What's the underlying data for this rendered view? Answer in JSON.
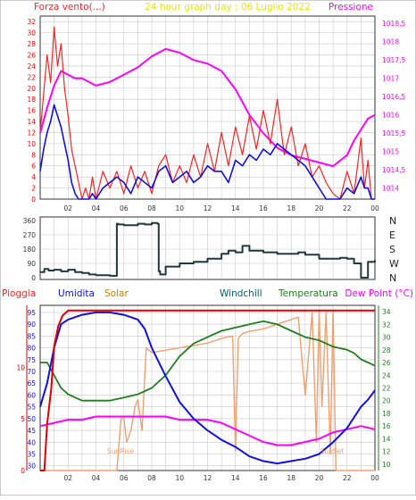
{
  "header": {
    "top_left": "Forza vento",
    "top_left_unit": "(...)",
    "top_center": "24 hour graph day : 06 Luglio 2022",
    "top_right": "Pressione"
  },
  "bottom_labels": {
    "pioggia": "Pioggia",
    "umidita": "Umidita",
    "solar": "Solar",
    "windchill": "Windchill",
    "temperatura": "Temperatura",
    "dewpoint": "Dew Point (°C)",
    "sunrise": "SunRise",
    "sunset": "SunSet"
  },
  "colors": {
    "wind_gust": "#ff2020",
    "wind_avg": "#1010e0",
    "pressure": "#ff00ff",
    "direction": "#203838",
    "rain": "#e00000",
    "humidity": "#1010e0",
    "solar": "#f0a070",
    "temperature": "#208020",
    "dewpoint": "#ff00ff",
    "axis_left_top": "#ff0000",
    "axis_right_top": "#ff00ff",
    "axis_right_bottom": "#208020",
    "title": "#e8e800",
    "windchill_label": "#006060"
  },
  "chart_data": [
    {
      "type": "line",
      "title": "24 hour graph day : 06 Luglio 2022",
      "x_ticks": [
        "02",
        "04",
        "06",
        "08",
        "10",
        "12",
        "14",
        "16",
        "18",
        "20",
        "22",
        "00"
      ],
      "x_range_hours": [
        0,
        24
      ],
      "ylabel_left": "Forza vento(...)",
      "ylim_left": [
        0,
        33
      ],
      "yticks_left": [
        "0",
        "2",
        "4",
        "6",
        "8",
        "10",
        "12",
        "14",
        "16",
        "18",
        "20",
        "22",
        "24",
        "26",
        "28",
        "30",
        "32"
      ],
      "ylabel_right": "Pressione",
      "ylim_right": [
        1013.7,
        1018.7
      ],
      "yticks_right": [
        "1014",
        "1014,5",
        "1015",
        "1015,5",
        "1016",
        "1016,5",
        "1017",
        "1017,5",
        "1018",
        "1018,5"
      ],
      "series": [
        {
          "name": "Forza vento",
          "axis": "left",
          "x": [
            0,
            0.25,
            0.5,
            0.75,
            1,
            1.25,
            1.5,
            1.75,
            2,
            2.25,
            2.5,
            2.75,
            3,
            3.25,
            3.5,
            3.75,
            4,
            4.5,
            5,
            5.5,
            6,
            6.5,
            7,
            7.5,
            8,
            8.5,
            9,
            9.5,
            10,
            10.5,
            11,
            11.5,
            12,
            12.5,
            13,
            13.5,
            14,
            14.5,
            15,
            15.5,
            16,
            16.5,
            17,
            17.5,
            18,
            18.5,
            19,
            19.5,
            20,
            20.5,
            21,
            21.5,
            22,
            22.5,
            23,
            23.25,
            23.5,
            23.75,
            24
          ],
          "values": [
            12,
            19,
            26,
            21,
            31,
            24,
            28,
            20,
            15,
            9,
            6,
            3,
            0,
            2,
            0,
            4,
            0,
            5,
            2,
            5,
            1,
            6,
            2,
            5,
            1,
            6,
            8,
            3,
            6,
            3,
            8,
            4,
            10,
            5,
            12,
            6,
            13,
            8,
            15,
            9,
            16,
            10,
            18,
            8,
            13,
            6,
            10,
            4,
            6,
            3,
            1,
            0,
            5,
            1,
            11,
            2,
            7,
            0,
            0
          ]
        },
        {
          "name": "Vento medio",
          "axis": "left",
          "x": [
            0,
            0.25,
            0.5,
            0.75,
            1,
            1.25,
            1.5,
            1.75,
            2,
            2.25,
            2.5,
            2.75,
            3,
            3.25,
            3.5,
            3.75,
            4,
            4.5,
            5,
            5.5,
            6,
            6.5,
            7,
            7.5,
            8,
            8.5,
            9,
            9.5,
            10,
            10.5,
            11,
            11.5,
            12,
            12.5,
            13,
            13.5,
            14,
            14.5,
            15,
            15.5,
            16,
            16.5,
            17,
            17.5,
            18,
            18.5,
            19,
            19.5,
            20,
            20.5,
            21,
            21.5,
            22,
            22.5,
            23,
            23.25,
            23.5,
            23.75,
            24
          ],
          "values": [
            5,
            9,
            12,
            14,
            17,
            15,
            13,
            10,
            7,
            3,
            1,
            0,
            0,
            0,
            0,
            1,
            0,
            2,
            3,
            4,
            3,
            1,
            4,
            3,
            2,
            5,
            6,
            3,
            4,
            5,
            3,
            4,
            6,
            5,
            5,
            3,
            7,
            6,
            8,
            7,
            9,
            8,
            10,
            9,
            8,
            7,
            6,
            4,
            2,
            0,
            0,
            0,
            2,
            1,
            4,
            2,
            2,
            0,
            0
          ]
        },
        {
          "name": "Pressione",
          "axis": "right",
          "x": [
            0,
            0.5,
            1,
            1.5,
            2,
            2.5,
            3,
            3.5,
            4,
            5,
            6,
            7,
            8,
            9,
            10,
            11,
            12,
            13,
            14,
            15,
            16,
            17,
            18,
            19,
            20,
            21,
            22,
            22.5,
            23,
            23.5,
            24
          ],
          "values": [
            1015.5,
            1016.2,
            1016.8,
            1017.2,
            1017.1,
            1017.0,
            1017.0,
            1016.9,
            1016.8,
            1016.9,
            1017.1,
            1017.3,
            1017.6,
            1017.8,
            1017.7,
            1017.5,
            1017.4,
            1017.2,
            1016.7,
            1016.0,
            1015.5,
            1015.1,
            1014.9,
            1014.8,
            1014.7,
            1014.6,
            1014.9,
            1015.3,
            1015.6,
            1015.9,
            1016.0
          ]
        }
      ]
    },
    {
      "type": "line",
      "title": "",
      "x_range_hours": [
        0,
        24
      ],
      "ylim": [
        0,
        360
      ],
      "yticks_left": [
        "0",
        "90",
        "180",
        "270",
        "360"
      ],
      "yticks_right": [
        "N",
        "W",
        "S",
        "E",
        "N"
      ],
      "series": [
        {
          "name": "Direzione vento",
          "x": [
            0,
            0.3,
            0.6,
            1,
            1.5,
            2,
            2.5,
            3,
            3.5,
            4,
            4.5,
            5,
            5.4,
            5.5,
            5.6,
            6,
            7,
            7.5,
            8,
            8.4,
            8.5,
            8.6,
            9,
            10,
            11,
            12,
            13,
            13.5,
            14,
            14.5,
            15,
            16,
            17,
            18,
            18.5,
            19,
            20,
            21,
            21.5,
            22,
            22.5,
            23,
            23.25,
            23.5,
            24
          ],
          "values": [
            35,
            55,
            45,
            50,
            40,
            50,
            35,
            30,
            20,
            15,
            15,
            12,
            12,
            340,
            335,
            330,
            340,
            335,
            345,
            340,
            40,
            20,
            70,
            90,
            100,
            120,
            150,
            170,
            160,
            200,
            170,
            160,
            150,
            150,
            160,
            145,
            120,
            120,
            125,
            120,
            90,
            0,
            0,
            100,
            110
          ]
        }
      ]
    },
    {
      "type": "line",
      "title": "",
      "x_range_hours": [
        0,
        24
      ],
      "ylim_left_humidity": [
        28,
        98
      ],
      "yticks_left_humidity": [
        "30",
        "35",
        "40",
        "45",
        "50",
        "55",
        "60",
        "65",
        "70",
        "75",
        "80",
        "85",
        "90",
        "95"
      ],
      "yticks_left_rain": [
        "0",
        "5",
        "10"
      ],
      "ylim_right": [
        9,
        35
      ],
      "yticks_right": [
        "10",
        "12",
        "14",
        "16",
        "18",
        "20",
        "22",
        "24",
        "26",
        "28",
        "30",
        "32",
        "34"
      ],
      "annotations": [
        "SunRise",
        "SunSet"
      ],
      "series": [
        {
          "name": "Pioggia",
          "axis": "rain",
          "x": [
            0,
            0.3,
            0.5,
            0.8,
            1.0,
            1.3,
            1.6,
            2.0,
            3,
            24
          ],
          "values": [
            0,
            0,
            4.5,
            8,
            12,
            14,
            15,
            15.5,
            15.5,
            15.5
          ]
        },
        {
          "name": "Umidita",
          "axis": "left",
          "x": [
            0,
            0.5,
            1,
            1.5,
            2,
            3,
            4,
            5,
            6,
            7,
            7.5,
            8,
            9,
            10,
            11,
            12,
            13,
            14,
            15,
            16,
            17,
            18,
            19,
            20,
            21,
            22,
            23,
            23.5,
            24
          ],
          "values": [
            55,
            65,
            80,
            90,
            92,
            94,
            95,
            95,
            94,
            92,
            88,
            80,
            68,
            57,
            50,
            45,
            41,
            38,
            34,
            32,
            31,
            32,
            33,
            35,
            40,
            46,
            55,
            58,
            62
          ]
        },
        {
          "name": "Solar",
          "axis": "left",
          "x": [
            0,
            5.5,
            5.8,
            6.0,
            6.2,
            6.5,
            6.8,
            7.0,
            7.3,
            7.6,
            8,
            9,
            10,
            11,
            12,
            13,
            13.8,
            14.0,
            14.2,
            14.5,
            15,
            16,
            17,
            18,
            18.5,
            19.0,
            19.5,
            19.8,
            20.0,
            20.2,
            20.5,
            20.8,
            21.0,
            21.2,
            24
          ],
          "values": [
            28,
            28,
            50,
            50,
            40,
            45,
            55,
            58,
            45,
            80,
            78,
            79,
            80,
            81,
            82,
            84,
            85,
            36,
            84,
            86,
            87,
            88,
            90,
            92,
            93,
            60,
            95,
            40,
            96,
            55,
            95,
            35,
            96,
            28,
            28
          ]
        },
        {
          "name": "Temperatura",
          "axis": "right",
          "x": [
            0,
            0.5,
            1,
            1.5,
            2,
            3,
            4,
            5,
            6,
            7,
            8,
            9,
            10,
            11,
            12,
            13,
            14,
            15,
            16,
            17,
            18,
            19,
            20,
            21,
            22,
            22.5,
            23,
            23.5,
            24
          ],
          "values": [
            26,
            26,
            24,
            22,
            21,
            20,
            20,
            20,
            20.5,
            21,
            22,
            24,
            27,
            29,
            30,
            31,
            31.5,
            32,
            32.5,
            32,
            31,
            30,
            29.5,
            28.5,
            28,
            27.5,
            26.5,
            26,
            25.5
          ]
        },
        {
          "name": "Windchill",
          "axis": "right",
          "x": [
            0,
            0.5,
            1,
            1.5,
            2,
            3,
            4,
            5,
            6,
            7,
            8,
            9,
            10,
            11,
            12,
            13,
            14,
            15,
            16,
            17,
            18,
            19,
            20,
            21,
            22,
            22.5,
            23,
            23.5,
            24
          ],
          "values": [
            26,
            26,
            24,
            22,
            21,
            20,
            20,
            20,
            20.5,
            21,
            22,
            24,
            27,
            29,
            30,
            31,
            31.5,
            32,
            32.5,
            32,
            31,
            30,
            29.5,
            28.5,
            28,
            27.5,
            26.5,
            26,
            25.5
          ]
        },
        {
          "name": "Dew Point",
          "axis": "right",
          "x": [
            0,
            1,
            2,
            3,
            4,
            5,
            6,
            7,
            8,
            9,
            10,
            11,
            12,
            13,
            14,
            15,
            16,
            17,
            18,
            19,
            20,
            21,
            22,
            23,
            24
          ],
          "values": [
            16,
            16.5,
            17,
            17,
            17.5,
            17.5,
            17.5,
            17.5,
            17.5,
            17.5,
            17,
            17,
            17,
            16.5,
            15.5,
            14.5,
            13.5,
            13,
            13,
            13.5,
            14,
            15,
            15.5,
            16,
            15.5
          ]
        }
      ]
    }
  ]
}
